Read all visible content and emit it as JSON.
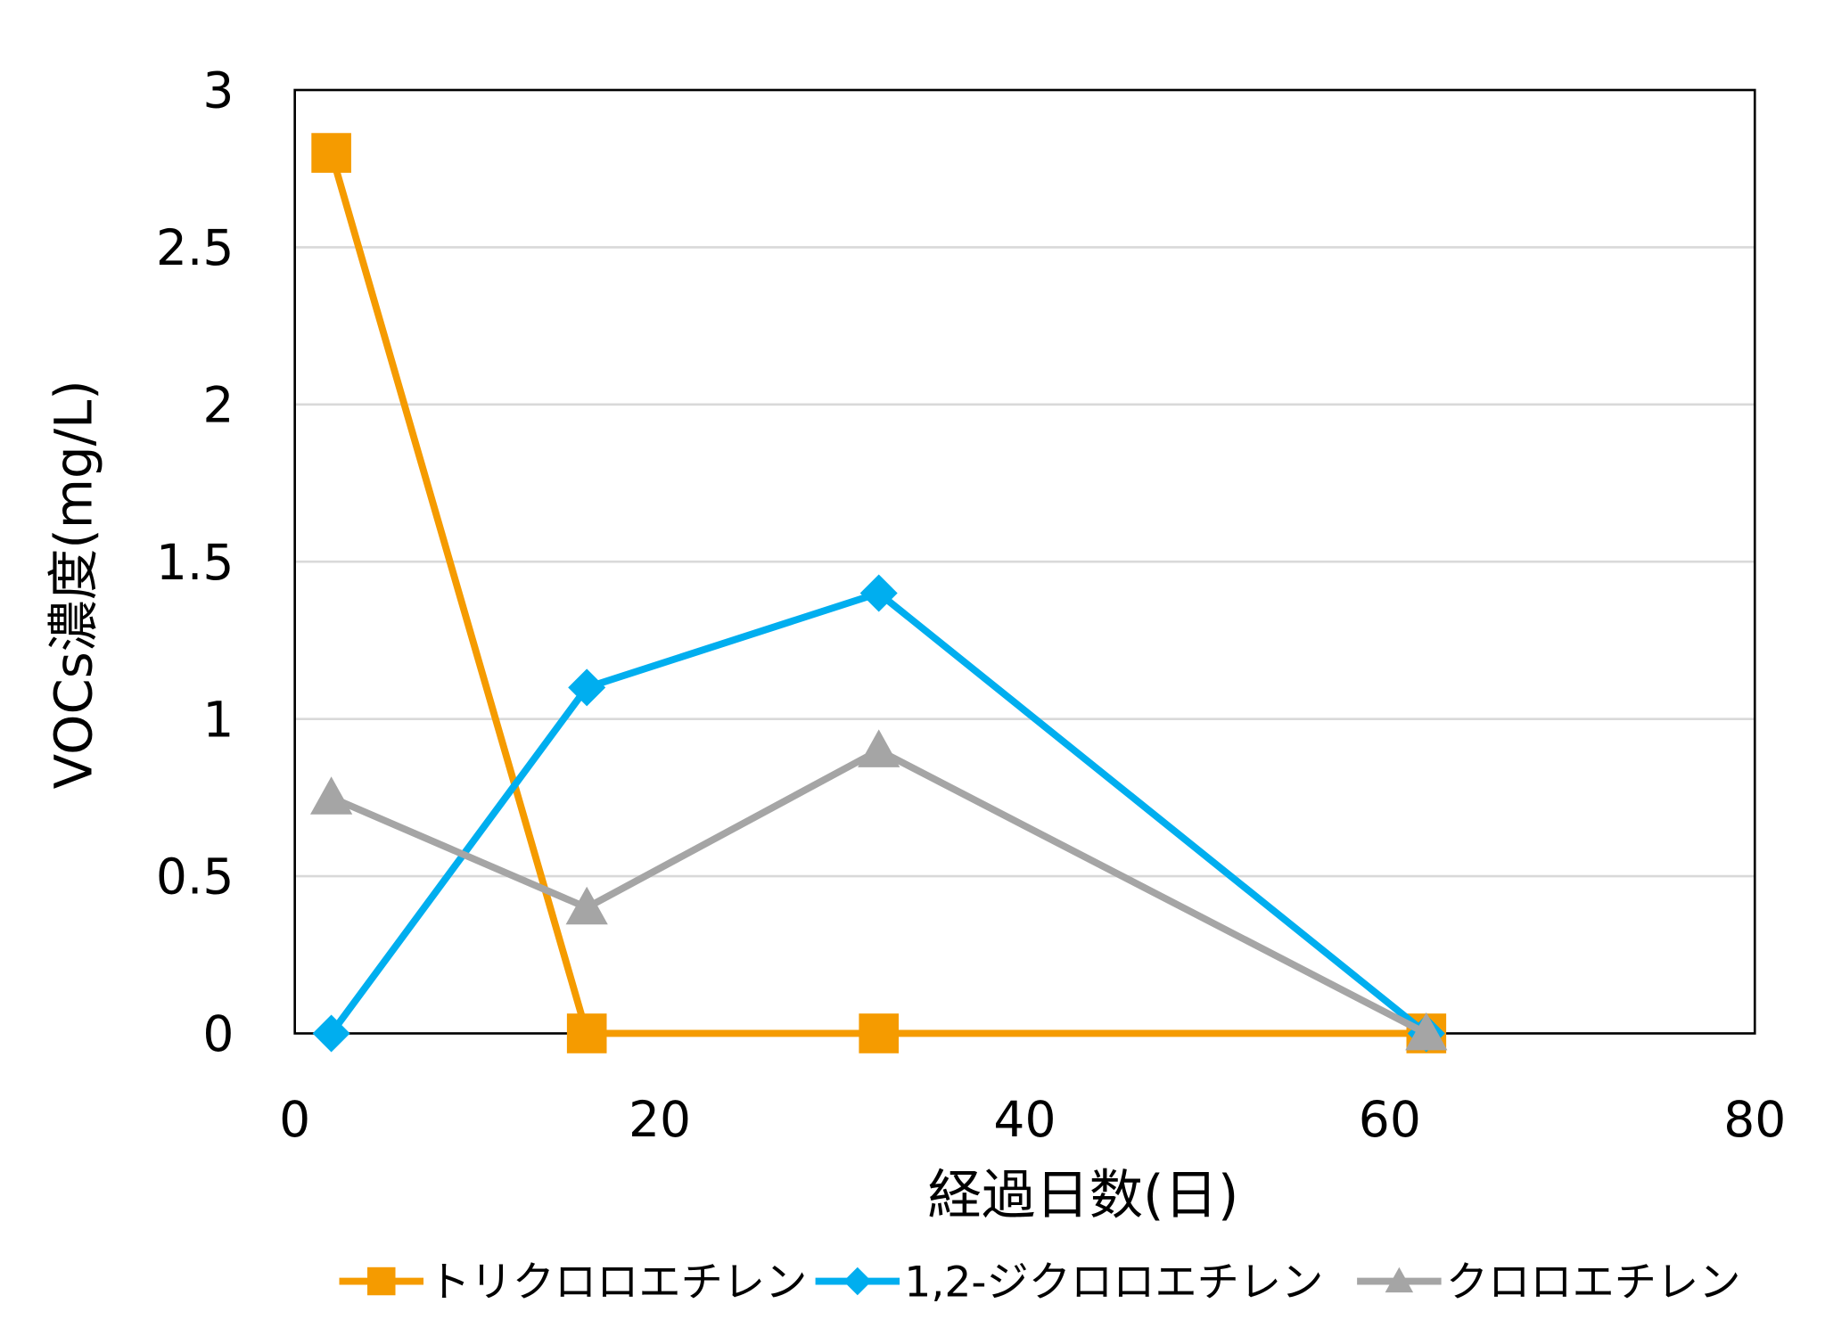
{
  "chart_data": {
    "type": "line",
    "title": "",
    "xlabel": "経過日数(日)",
    "ylabel": "VOCs濃度(mg/L)",
    "xlim": [
      0,
      80
    ],
    "ylim": [
      0,
      3
    ],
    "xticks": [
      0,
      20,
      40,
      60,
      80
    ],
    "yticks": [
      0,
      0.5,
      1,
      1.5,
      2,
      2.5,
      3
    ],
    "xtick_labels": [
      "0",
      "20",
      "40",
      "60",
      "80"
    ],
    "ytick_labels": [
      "0",
      "0.5",
      "1",
      "1.5",
      "2",
      "2.5",
      "3"
    ],
    "grid": "horizontal",
    "legend_position": "bottom",
    "x": [
      2,
      16,
      32,
      62
    ],
    "series": [
      {
        "name": "トリクロロエチレン",
        "values": [
          2.8,
          0,
          0,
          0
        ],
        "color": "#F59B00",
        "marker": "square"
      },
      {
        "name": "1,2-ジクロロエチレン",
        "values": [
          0,
          1.1,
          1.4,
          0
        ],
        "color": "#00AEEF",
        "marker": "diamond"
      },
      {
        "name": "クロロエチレン",
        "values": [
          0.75,
          0.4,
          0.9,
          0
        ],
        "color": "#A5A5A5",
        "marker": "triangle"
      }
    ]
  }
}
